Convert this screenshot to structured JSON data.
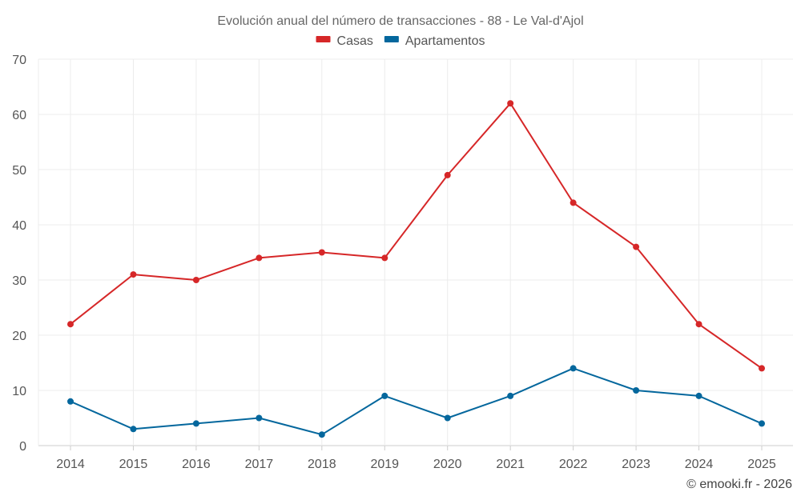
{
  "chart_data": {
    "type": "line",
    "title": "Evolución anual del número de transacciones - 88 - Le Val-d'Ajol",
    "x": [
      "2014",
      "2015",
      "2016",
      "2017",
      "2018",
      "2019",
      "2020",
      "2021",
      "2022",
      "2023",
      "2024",
      "2025"
    ],
    "ylim": [
      0,
      70
    ],
    "yticks": [
      0,
      10,
      20,
      30,
      40,
      50,
      60,
      70
    ],
    "grid": true,
    "legend_position": "top-center",
    "series": [
      {
        "name": "Casas",
        "color": "#d62728",
        "values": [
          22,
          31,
          30,
          34,
          35,
          34,
          49,
          62,
          44,
          36,
          22,
          14
        ]
      },
      {
        "name": "Apartamentos",
        "color": "#04679d",
        "values": [
          8,
          3,
          4,
          5,
          2,
          9,
          5,
          9,
          14,
          10,
          9,
          4
        ]
      }
    ]
  },
  "credit": "© emooki.fr - 2026"
}
